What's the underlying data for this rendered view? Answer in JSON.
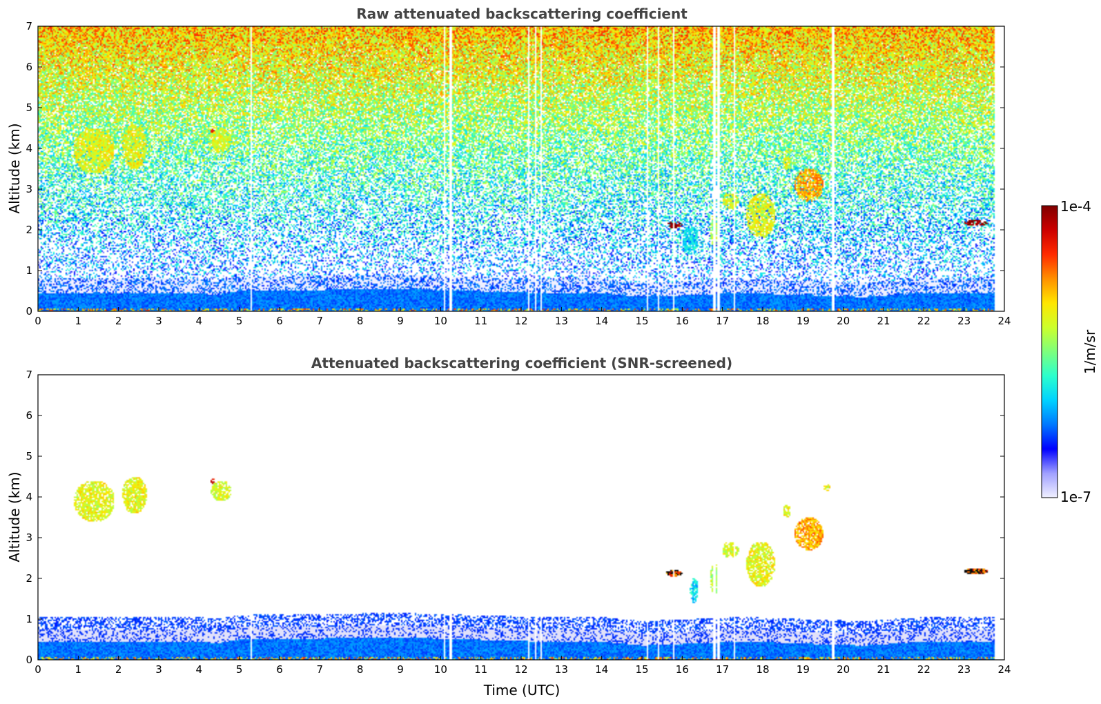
{
  "chart_data": [
    {
      "type": "heatmap",
      "title": "Raw attenuated backscattering coefficient",
      "xlabel": "",
      "ylabel": "Altitude (km)",
      "xlim": [
        0,
        24
      ],
      "ylim": [
        0,
        7
      ],
      "x_ticks": [
        "0",
        "1",
        "2",
        "3",
        "4",
        "5",
        "6",
        "7",
        "8",
        "9",
        "10",
        "11",
        "12",
        "13",
        "14",
        "15",
        "16",
        "17",
        "18",
        "19",
        "20",
        "21",
        "22",
        "23",
        "24"
      ],
      "y_ticks": [
        "0",
        "1",
        "2",
        "3",
        "4",
        "5",
        "6",
        "7"
      ],
      "data_end_time": 23.75,
      "gap_times": [
        5.3,
        10.1,
        10.25,
        12.2,
        12.35,
        12.5,
        15.15,
        15.4,
        15.8,
        16.8,
        16.9,
        17.3,
        19.75
      ],
      "boundary_layer_top": [
        {
          "t": 0,
          "h": 0.45
        },
        {
          "t": 4,
          "h": 0.45
        },
        {
          "t": 4.4,
          "h": 0.4
        },
        {
          "t": 5,
          "h": 0.5
        },
        {
          "t": 9,
          "h": 0.55
        },
        {
          "t": 12.5,
          "h": 0.45
        },
        {
          "t": 14,
          "h": 0.45
        },
        {
          "t": 15,
          "h": 0.35
        },
        {
          "t": 17.5,
          "h": 0.45
        },
        {
          "t": 19,
          "h": 0.4
        },
        {
          "t": 20.5,
          "h": 0.35
        },
        {
          "t": 22,
          "h": 0.45
        },
        {
          "t": 23.75,
          "h": 0.45
        }
      ],
      "features": [
        {
          "kind": "cirrus",
          "t0": 0.9,
          "t1": 1.9,
          "h0": 3.4,
          "h1": 4.5,
          "level": 0.62
        },
        {
          "kind": "cirrus",
          "t0": 2.1,
          "t1": 2.7,
          "h0": 3.5,
          "h1": 4.6,
          "level": 0.62
        },
        {
          "kind": "cirrus",
          "t0": 4.3,
          "t1": 4.8,
          "h0": 3.9,
          "h1": 4.5,
          "level": 0.6
        },
        {
          "kind": "cloud",
          "t0": 4.3,
          "t1": 4.4,
          "h0": 4.35,
          "h1": 4.5,
          "level": 0.86
        },
        {
          "kind": "cloud",
          "t0": 15.6,
          "t1": 16.0,
          "h0": 2.05,
          "h1": 2.2,
          "level": 0.98
        },
        {
          "kind": "cirrus",
          "t0": 16.0,
          "t1": 16.4,
          "h0": 1.4,
          "h1": 2.1,
          "level": 0.35
        },
        {
          "kind": "cirrus",
          "t0": 16.7,
          "t1": 16.9,
          "h0": 1.6,
          "h1": 2.4,
          "level": 0.55
        },
        {
          "kind": "cirrus",
          "t0": 17.0,
          "t1": 17.4,
          "h0": 2.5,
          "h1": 2.9,
          "level": 0.6
        },
        {
          "kind": "cirrus",
          "t0": 17.6,
          "t1": 18.3,
          "h0": 1.8,
          "h1": 2.9,
          "level": 0.62
        },
        {
          "kind": "cirrus",
          "t0": 18.5,
          "t1": 18.7,
          "h0": 3.5,
          "h1": 3.8,
          "level": 0.62
        },
        {
          "kind": "cirrus",
          "t0": 18.8,
          "t1": 19.5,
          "h0": 2.7,
          "h1": 3.5,
          "level": 0.72
        },
        {
          "kind": "cirrus",
          "t0": 19.6,
          "t1": 19.7,
          "h0": 4.15,
          "h1": 4.3,
          "level": 0.62
        },
        {
          "kind": "cloud",
          "t0": 23.0,
          "t1": 23.6,
          "h0": 2.1,
          "h1": 2.25,
          "level": 0.98
        }
      ]
    },
    {
      "type": "heatmap",
      "title": "Attenuated backscattering coefficient (SNR-screened)",
      "xlabel": "Time (UTC)",
      "ylabel": "Altitude (km)",
      "xlim": [
        0,
        24
      ],
      "ylim": [
        0,
        7
      ],
      "x_ticks": [
        "0",
        "1",
        "2",
        "3",
        "4",
        "5",
        "6",
        "7",
        "8",
        "9",
        "10",
        "11",
        "12",
        "13",
        "14",
        "15",
        "16",
        "17",
        "18",
        "19",
        "20",
        "21",
        "22",
        "23",
        "24"
      ],
      "y_ticks": [
        "0",
        "1",
        "2",
        "3",
        "4",
        "5",
        "6",
        "7"
      ],
      "data_end_time": 23.75,
      "gap_times": [
        5.3,
        10.1,
        10.25,
        12.2,
        12.35,
        12.5,
        15.15,
        15.4,
        15.8,
        16.8,
        16.9,
        17.3,
        19.75
      ],
      "features": [
        {
          "kind": "cirrus",
          "t0": 0.9,
          "t1": 1.9,
          "h0": 3.4,
          "h1": 4.4,
          "level": 0.62
        },
        {
          "kind": "cirrus",
          "t0": 2.1,
          "t1": 2.7,
          "h0": 3.6,
          "h1": 4.5,
          "level": 0.62
        },
        {
          "kind": "cirrus",
          "t0": 4.3,
          "t1": 4.8,
          "h0": 3.9,
          "h1": 4.4,
          "level": 0.6
        },
        {
          "kind": "cloud",
          "t0": 4.3,
          "t1": 4.4,
          "h0": 4.3,
          "h1": 4.45,
          "level": 0.86
        },
        {
          "kind": "saturated",
          "t0": 15.6,
          "t1": 16.0,
          "h0": 2.05,
          "h1": 2.2,
          "level": 1.0
        },
        {
          "kind": "cirrus",
          "t0": 16.2,
          "t1": 16.4,
          "h0": 1.4,
          "h1": 2.0,
          "level": 0.35
        },
        {
          "kind": "cirrus",
          "t0": 16.7,
          "t1": 16.9,
          "h0": 1.6,
          "h1": 2.4,
          "level": 0.55
        },
        {
          "kind": "cirrus",
          "t0": 17.0,
          "t1": 17.4,
          "h0": 2.5,
          "h1": 2.9,
          "level": 0.6
        },
        {
          "kind": "cirrus",
          "t0": 17.6,
          "t1": 18.3,
          "h0": 1.8,
          "h1": 2.9,
          "level": 0.62
        },
        {
          "kind": "cirrus",
          "t0": 18.5,
          "t1": 18.7,
          "h0": 3.5,
          "h1": 3.8,
          "level": 0.62
        },
        {
          "kind": "cirrus",
          "t0": 18.8,
          "t1": 19.5,
          "h0": 2.7,
          "h1": 3.5,
          "level": 0.72
        },
        {
          "kind": "cirrus",
          "t0": 19.5,
          "t1": 19.7,
          "h0": 4.15,
          "h1": 4.3,
          "level": 0.62
        },
        {
          "kind": "saturated",
          "t0": 23.0,
          "t1": 23.6,
          "h0": 2.1,
          "h1": 2.25,
          "level": 1.0
        }
      ]
    }
  ],
  "colorbar": {
    "label": "1/m/sr",
    "max_label": "1e-4",
    "min_label": "1e-7",
    "scale": "log",
    "range": [
      1e-07,
      0.0001
    ],
    "colormap": [
      "#f0f0ff",
      "#a0a0ff",
      "#0000ff",
      "#0078ff",
      "#00d2ff",
      "#2bffcd",
      "#7dff7d",
      "#cdff2b",
      "#ffe600",
      "#ff9000",
      "#ff2a00",
      "#cc0000",
      "#800000"
    ]
  }
}
